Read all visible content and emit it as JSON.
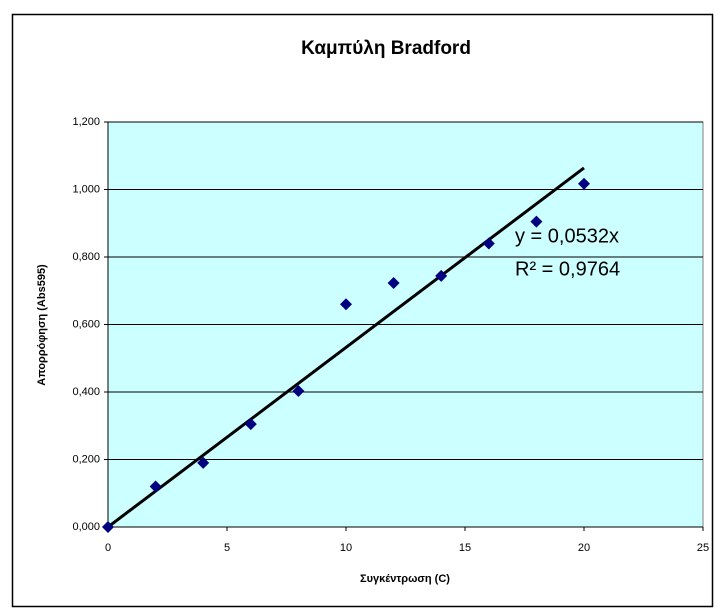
{
  "chart_data": {
    "type": "scatter",
    "title": "Καμπύλη Bradford",
    "x_label": "Συγκέντρωση (C)",
    "y_label": "Απορρόφηση (Abs595)",
    "x": [
      0,
      2,
      4,
      6,
      8,
      10,
      12,
      14,
      16,
      18,
      20
    ],
    "values": [
      0,
      0.12,
      0.19,
      0.305,
      0.403,
      0.66,
      0.723,
      0.744,
      0.84,
      0.905,
      1.017
    ],
    "color": "#000080",
    "trendline": {
      "slope": 0.0532,
      "color": "#000000",
      "equation": "y = 0,0532x",
      "r_squared": "R² = 0,9764"
    },
    "xlim": [
      0,
      25
    ],
    "xticks": [
      0,
      5,
      10,
      15,
      20,
      25
    ],
    "ylim": [
      0,
      1.2
    ],
    "yticks": [
      {
        "value": 0,
        "label": "0,000"
      },
      {
        "value": 0.2,
        "label": "0,200"
      },
      {
        "value": 0.4,
        "label": "0,400"
      },
      {
        "value": 0.6,
        "label": "0,600"
      },
      {
        "value": 0.8,
        "label": "0,800"
      },
      {
        "value": 1.0,
        "label": "1,000"
      },
      {
        "value": 1.2,
        "label": "1,200"
      }
    ],
    "grid": true,
    "plot_background": "#ccffff"
  }
}
